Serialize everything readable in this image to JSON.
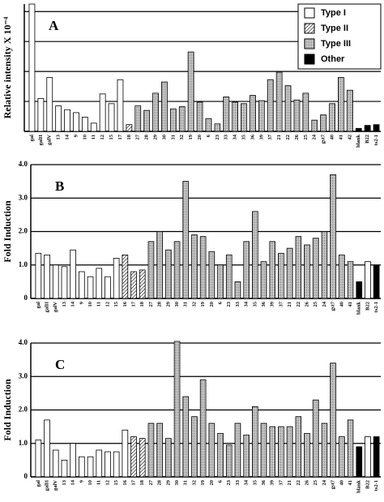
{
  "chart_data": [
    {
      "type": "bar",
      "label": "A",
      "y_label": "Relative intensity X 10⁻⁴",
      "categories": [
        "gal",
        "galII",
        "galV",
        "13",
        "14",
        "9",
        "10",
        "11",
        "12",
        "15",
        "17",
        "18",
        "27",
        "28",
        "29",
        "30",
        "31",
        "32",
        "19",
        "20",
        "6",
        "23",
        "33",
        "34",
        "35",
        "36",
        "39",
        "37",
        "21",
        "22",
        "26",
        "25",
        "24",
        "gst7",
        "40",
        "41",
        "42",
        "blank",
        "B22",
        "ts2-1"
      ],
      "values": [
        17,
        4.4,
        7.2,
        3.4,
        2.9,
        2.5,
        1.9,
        1.1,
        5.0,
        3.7,
        6.9,
        0.9,
        3.4,
        2.8,
        5.1,
        6.6,
        3.0,
        3.3,
        10.6,
        3.9,
        1.7,
        1.0,
        4.6,
        3.9,
        3.7,
        4.8,
        4.1,
        6.9,
        7.9,
        6.1,
        4.2,
        5.1,
        1.5,
        2.2,
        3.7,
        7.2,
        5.5,
        0.4,
        0.8,
        0.9
      ],
      "fills": [
        "white",
        "white",
        "white",
        "white",
        "white",
        "white",
        "white",
        "white",
        "white",
        "white",
        "white",
        "hatch",
        "dots",
        "dots",
        "dots",
        "dots",
        "dots",
        "dots",
        "dots",
        "dots",
        "dots",
        "dots",
        "dots",
        "dots",
        "dots",
        "dots",
        "dots",
        "dots",
        "dots",
        "dots",
        "dots",
        "dots",
        "dots",
        "dots",
        "dots",
        "dots",
        "dots",
        "black",
        "black",
        "black"
      ],
      "ylim": [
        0,
        17
      ],
      "yticks": [
        0,
        4,
        8,
        12,
        16
      ],
      "grid": true,
      "tick_labels": false,
      "legend": [
        {
          "name": "Type I",
          "fill": "white"
        },
        {
          "name": "Type II",
          "fill": "hatch"
        },
        {
          "name": "Type III",
          "fill": "dots"
        },
        {
          "name": "Other",
          "fill": "black"
        }
      ],
      "legend_position": "upper right"
    },
    {
      "type": "bar",
      "label": "B",
      "y_label": "Fold Induction",
      "categories": [
        "gal",
        "galII",
        "galV",
        "13",
        "14",
        "9",
        "10",
        "11",
        "12",
        "15",
        "16",
        "17",
        "18",
        "27",
        "28",
        "29",
        "30",
        "31",
        "32",
        "19",
        "20",
        "6",
        "23",
        "33",
        "34",
        "35",
        "36",
        "39",
        "37",
        "21",
        "22",
        "26",
        "25",
        "24",
        "gst7",
        "40",
        "41",
        "blank",
        "B22",
        "ts2-1"
      ],
      "values": [
        1.35,
        1.3,
        1.0,
        0.95,
        1.45,
        0.8,
        0.65,
        0.9,
        0.65,
        1.2,
        1.3,
        0.8,
        0.85,
        1.7,
        2.0,
        1.45,
        1.7,
        3.5,
        1.9,
        1.85,
        1.4,
        1.0,
        1.3,
        0.5,
        1.7,
        2.6,
        1.1,
        1.7,
        1.35,
        1.5,
        1.85,
        1.6,
        1.8,
        2.0,
        3.7,
        1.3,
        1.1,
        0.5,
        1.1,
        1.0
      ],
      "fills": [
        "white",
        "white",
        "white",
        "white",
        "white",
        "white",
        "white",
        "white",
        "white",
        "white",
        "hatch",
        "hatch",
        "hatch",
        "dots",
        "dots",
        "dots",
        "dots",
        "dots",
        "dots",
        "dots",
        "dots",
        "dots",
        "dots",
        "dots",
        "dots",
        "dots",
        "dots",
        "dots",
        "dots",
        "dots",
        "dots",
        "dots",
        "dots",
        "dots",
        "dots",
        "dots",
        "dots",
        "black",
        "white",
        "black"
      ],
      "ylim": [
        0,
        4.0
      ],
      "yticks": [
        0,
        {
          "value": 1,
          "label": "1.0"
        },
        {
          "value": 2,
          "label": "2.0"
        },
        {
          "value": 3,
          "label": "3.0"
        },
        {
          "value": 4,
          "label": "4.0"
        }
      ],
      "grid": true,
      "tick_labels": true
    },
    {
      "type": "bar",
      "label": "C",
      "y_label": "Fold Induction",
      "categories": [
        "gal",
        "galII",
        "galV",
        "13",
        "14",
        "9",
        "10",
        "11",
        "12",
        "15",
        "16",
        "17",
        "18",
        "27",
        "28",
        "29",
        "30",
        "31",
        "32",
        "19",
        "20",
        "6",
        "23",
        "33",
        "34",
        "35",
        "36",
        "39",
        "37",
        "21",
        "22",
        "26",
        "25",
        "24",
        "gst7",
        "40",
        "41",
        "blank",
        "B22",
        "ts2-1"
      ],
      "values": [
        1.1,
        1.7,
        0.8,
        0.5,
        1.0,
        0.6,
        0.6,
        0.8,
        0.75,
        0.75,
        1.4,
        1.2,
        1.15,
        1.6,
        1.6,
        1.15,
        4.05,
        2.4,
        1.8,
        2.9,
        1.6,
        1.3,
        0.95,
        1.6,
        1.25,
        2.1,
        1.6,
        1.5,
        1.5,
        1.5,
        1.8,
        1.3,
        2.3,
        1.6,
        3.4,
        1.2,
        1.7,
        0.9,
        1.2,
        1.2
      ],
      "fills": [
        "white",
        "white",
        "white",
        "white",
        "white",
        "white",
        "white",
        "white",
        "white",
        "white",
        "white",
        "hatch",
        "hatch",
        "dots",
        "dots",
        "dots",
        "dots",
        "dots",
        "dots",
        "dots",
        "dots",
        "dots",
        "dots",
        "dots",
        "dots",
        "dots",
        "dots",
        "dots",
        "dots",
        "dots",
        "dots",
        "dots",
        "dots",
        "dots",
        "dots",
        "dots",
        "dots",
        "black",
        "white",
        "black"
      ],
      "ylim": [
        0,
        4.0
      ],
      "yticks": [
        0,
        {
          "value": 1,
          "label": "1.0"
        },
        {
          "value": 2,
          "label": "2.0"
        },
        {
          "value": 3,
          "label": "3.0"
        },
        {
          "value": 4,
          "label": "4.0"
        }
      ],
      "grid": true,
      "tick_labels": true
    }
  ]
}
